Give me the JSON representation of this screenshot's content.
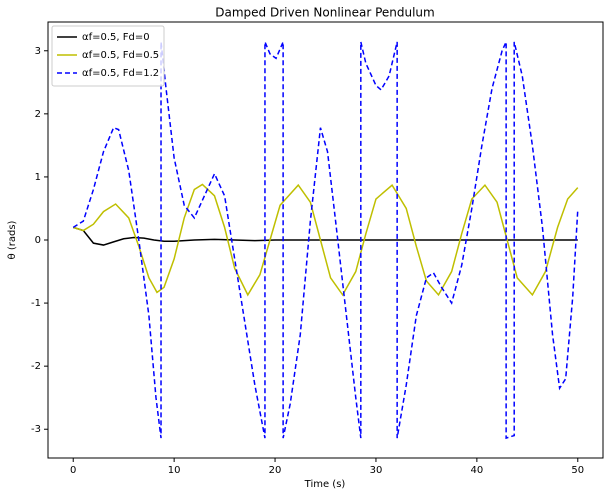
{
  "chart_data": {
    "type": "line",
    "title": "Damped Driven Nonlinear Pendulum",
    "xlabel": "Time (s)",
    "ylabel": "θ (rads)",
    "xlim": [
      -2.5,
      52.5
    ],
    "ylim": [
      -3.456,
      3.456
    ],
    "xticks": [
      0,
      10,
      20,
      30,
      40,
      50
    ],
    "yticks": [
      -3,
      -2,
      -1,
      0,
      1,
      2,
      3
    ],
    "legend": "upper left",
    "series": [
      {
        "name": "αf=0.5, Fd=0",
        "color": "#000000",
        "linestyle": "solid",
        "x": [
          0,
          1,
          2,
          3,
          4,
          5,
          6,
          7,
          8,
          9,
          10,
          12,
          14,
          16,
          18,
          20,
          22,
          24,
          26,
          28,
          30,
          32,
          34,
          36,
          38,
          40,
          42,
          44,
          46,
          48,
          50
        ],
        "values": [
          0.2,
          0.15,
          -0.05,
          -0.08,
          -0.03,
          0.02,
          0.04,
          0.03,
          0.0,
          -0.02,
          -0.02,
          0.0,
          0.01,
          0.0,
          -0.01,
          0,
          0,
          0,
          0,
          0,
          0,
          0,
          0,
          0,
          0,
          0,
          0,
          0,
          0,
          0,
          0
        ]
      },
      {
        "name": "αf=0.5, Fd=0.5",
        "color": "#bfbf00",
        "linestyle": "solid",
        "x": [
          0,
          1,
          2,
          3,
          4.2,
          5.5,
          6.5,
          7.5,
          8.3,
          9,
          10,
          11,
          12,
          12.8,
          14,
          15,
          16,
          17.3,
          18.5,
          19.5,
          20.5,
          22.3,
          23.5,
          24.5,
          25.5,
          26.7,
          28,
          29,
          30,
          31.6,
          33,
          34,
          35,
          36.2,
          37.5,
          38.5,
          39.5,
          40.8,
          42,
          43,
          44,
          45.5,
          46.8,
          48,
          49,
          50
        ],
        "values": [
          0.2,
          0.15,
          0.25,
          0.45,
          0.57,
          0.35,
          -0.1,
          -0.6,
          -0.83,
          -0.75,
          -0.3,
          0.35,
          0.8,
          0.88,
          0.7,
          0.2,
          -0.45,
          -0.87,
          -0.55,
          0.0,
          0.55,
          0.87,
          0.6,
          0.0,
          -0.6,
          -0.87,
          -0.5,
          0.1,
          0.65,
          0.87,
          0.5,
          -0.1,
          -0.65,
          -0.87,
          -0.5,
          0.1,
          0.65,
          0.87,
          0.6,
          0.0,
          -0.6,
          -0.87,
          -0.5,
          0.2,
          0.65,
          0.83
        ]
      },
      {
        "name": "αf=0.5, Fd=1.2",
        "color": "#0000ff",
        "linestyle": "dashed",
        "x": [
          0,
          1,
          2,
          3,
          4,
          4.5,
          5.5,
          6.5,
          7.5,
          8.2,
          8.7,
          8.7,
          9.2,
          10,
          11,
          12,
          13,
          14,
          15,
          16,
          17,
          18,
          19,
          19,
          19.5,
          20.1,
          20.8,
          20.8,
          21.5,
          22.5,
          23.5,
          24.5,
          25.2,
          26,
          27,
          28,
          28.5,
          28.5,
          29,
          30,
          30.5,
          31.3,
          32.1,
          32.1,
          33,
          34,
          35,
          35.7,
          36.5,
          37.5,
          38.5,
          39.5,
          40.5,
          41.5,
          42.5,
          42.9,
          42.9,
          43.7,
          43.7,
          44.5,
          45.5,
          46.5,
          47.5,
          48.2,
          48.8,
          49.5,
          50
        ],
        "values": [
          0.2,
          0.3,
          0.8,
          1.4,
          1.78,
          1.75,
          1.1,
          0,
          -1.2,
          -2.5,
          -3.14,
          3.14,
          2.4,
          1.3,
          0.55,
          0.35,
          0.7,
          1.05,
          0.7,
          -0.3,
          -1.3,
          -2.3,
          -3.14,
          3.14,
          2.95,
          2.88,
          3.14,
          -3.14,
          -2.6,
          -1.5,
          0.3,
          1.78,
          1.4,
          0.3,
          -1.1,
          -2.5,
          -3.14,
          3.14,
          2.8,
          2.45,
          2.38,
          2.6,
          3.14,
          -3.14,
          -2.3,
          -1.2,
          -0.6,
          -0.52,
          -0.75,
          -1.0,
          -0.4,
          0.5,
          1.5,
          2.4,
          3.0,
          3.14,
          -3.14,
          -3.1,
          3.14,
          2.6,
          1.5,
          0.2,
          -1.5,
          -2.35,
          -2.2,
          -0.9,
          0.48
        ]
      }
    ]
  }
}
